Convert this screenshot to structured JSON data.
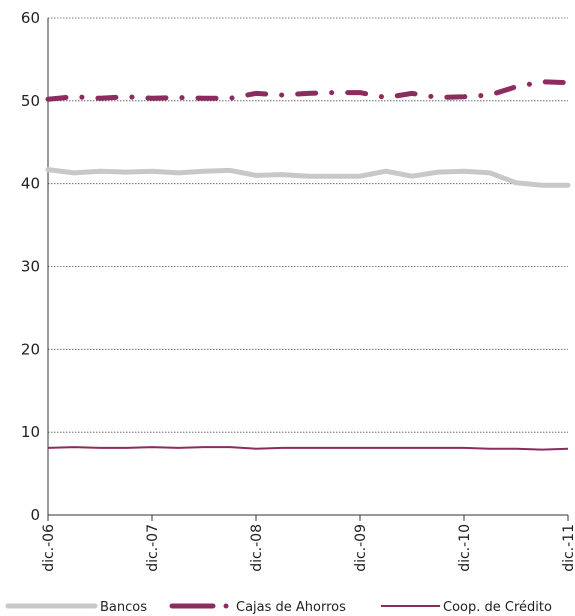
{
  "chart_data": {
    "type": "line",
    "title": "",
    "xlabel": "",
    "ylabel": "",
    "ylim": [
      0,
      60
    ],
    "yticks": [
      0,
      10,
      20,
      30,
      40,
      50,
      60
    ],
    "xtick_labels": [
      "dic.-06",
      "dic.-07",
      "dic.-08",
      "dic.-09",
      "dic.-10",
      "dic.-11"
    ],
    "x": [
      "dic.-06",
      "mar.-07",
      "jun.-07",
      "sep.-07",
      "dic.-07",
      "mar.-08",
      "jun.-08",
      "sep.-08",
      "dic.-08",
      "mar.-09",
      "jun.-09",
      "sep.-09",
      "dic.-09",
      "mar.-10",
      "jun.-10",
      "sep.-10",
      "dic.-10",
      "mar.-11",
      "jun.-11",
      "sep.-11",
      "dic.-11"
    ],
    "grid": true,
    "legend_position": "bottom",
    "series": [
      {
        "name": "Bancos",
        "color": "#c8c8c8",
        "style": "solid-thick",
        "values": [
          41.7,
          41.3,
          41.5,
          41.4,
          41.5,
          41.3,
          41.5,
          41.6,
          41.0,
          41.1,
          40.9,
          40.9,
          40.9,
          41.5,
          40.9,
          41.4,
          41.5,
          41.3,
          40.1,
          39.8,
          39.8
        ]
      },
      {
        "name": "Cajas de Ahorros",
        "color": "#8c2c5e",
        "style": "dash-dot",
        "values": [
          50.2,
          50.5,
          50.3,
          50.5,
          50.3,
          50.4,
          50.3,
          50.3,
          50.9,
          50.7,
          50.9,
          51.0,
          51.0,
          50.4,
          50.9,
          50.4,
          50.5,
          50.7,
          51.7,
          52.3,
          52.2
        ]
      },
      {
        "name": "Coop. de Crédito",
        "color": "#8c2c5e",
        "style": "solid-thin",
        "values": [
          8.1,
          8.2,
          8.1,
          8.1,
          8.2,
          8.1,
          8.2,
          8.2,
          8.0,
          8.1,
          8.1,
          8.1,
          8.1,
          8.1,
          8.1,
          8.1,
          8.1,
          8.0,
          8.0,
          7.9,
          8.0
        ]
      }
    ]
  }
}
